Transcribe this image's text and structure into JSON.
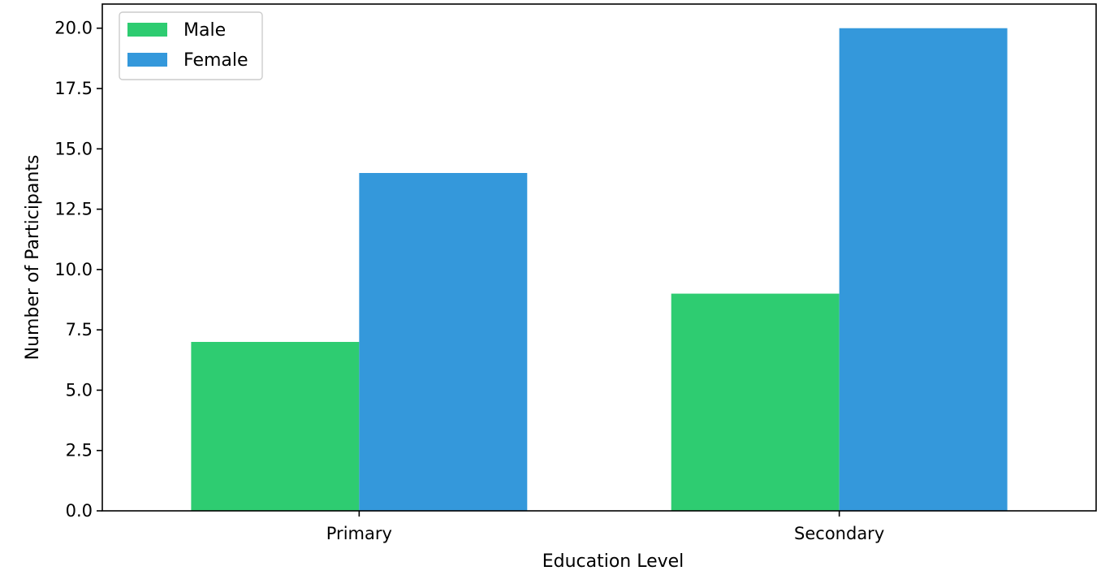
{
  "chart_data": {
    "type": "bar",
    "title": "",
    "xlabel": "Education Level",
    "ylabel": "Number of Participants",
    "categories": [
      "Primary",
      "Secondary"
    ],
    "series": [
      {
        "name": "Male",
        "values": [
          7,
          9
        ],
        "color": "#2ecc71"
      },
      {
        "name": "Female",
        "values": [
          14,
          20
        ],
        "color": "#3498db"
      }
    ],
    "ylim": [
      0,
      21
    ],
    "yticks": [
      0,
      2.5,
      5,
      7.5,
      10,
      12.5,
      15,
      17.5,
      20
    ],
    "ytick_labels": [
      "0.0",
      "2.5",
      "5.0",
      "7.5",
      "10.0",
      "12.5",
      "15.0",
      "17.5",
      "20.0"
    ],
    "grid": false,
    "legend_position": "top-left"
  }
}
